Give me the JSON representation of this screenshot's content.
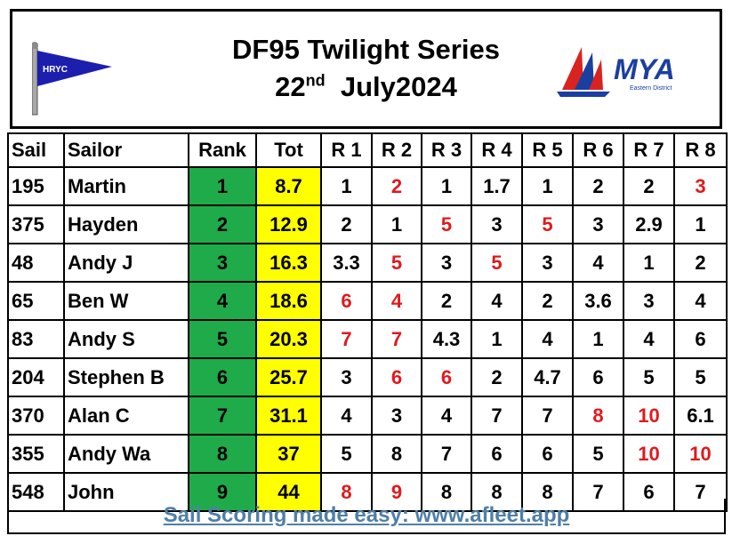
{
  "header": {
    "title_line1": "DF95 Twilight Series",
    "date_day": "22",
    "date_suffix": "nd",
    "date_rest": "July2024",
    "club_logo_text": "HRYC",
    "mya_logo_text": "MYA",
    "mya_logo_sub": "Eastern District"
  },
  "table": {
    "columns": [
      "Sail",
      "Sailor",
      "Rank",
      "Tot",
      "R 1",
      "R 2",
      "R 3",
      "R 4",
      "R 5",
      "R 6",
      "R 7",
      "R 8"
    ],
    "rows": [
      {
        "sail": "195",
        "sailor": "Martin",
        "rank": "1",
        "tot": "8.7",
        "races": [
          "1",
          "2",
          "1",
          "1.7",
          "1",
          "2",
          "2",
          "3"
        ],
        "discard": [
          false,
          true,
          false,
          false,
          false,
          false,
          false,
          true
        ]
      },
      {
        "sail": "375",
        "sailor": "Hayden",
        "rank": "2",
        "tot": "12.9",
        "races": [
          "2",
          "1",
          "5",
          "3",
          "5",
          "3",
          "2.9",
          "1"
        ],
        "discard": [
          false,
          false,
          true,
          false,
          true,
          false,
          false,
          false
        ]
      },
      {
        "sail": "48",
        "sailor": "Andy J",
        "rank": "3",
        "tot": "16.3",
        "races": [
          "3.3",
          "5",
          "3",
          "5",
          "3",
          "4",
          "1",
          "2"
        ],
        "discard": [
          false,
          true,
          false,
          true,
          false,
          false,
          false,
          false
        ]
      },
      {
        "sail": "65",
        "sailor": "Ben W",
        "rank": "4",
        "tot": "18.6",
        "races": [
          "6",
          "4",
          "2",
          "4",
          "2",
          "3.6",
          "3",
          "4"
        ],
        "discard": [
          true,
          true,
          false,
          false,
          false,
          false,
          false,
          false
        ]
      },
      {
        "sail": "83",
        "sailor": "Andy S",
        "rank": "5",
        "tot": "20.3",
        "races": [
          "7",
          "7",
          "4.3",
          "1",
          "4",
          "1",
          "4",
          "6"
        ],
        "discard": [
          true,
          true,
          false,
          false,
          false,
          false,
          false,
          false
        ]
      },
      {
        "sail": "204",
        "sailor": "Stephen B",
        "rank": "6",
        "tot": "25.7",
        "races": [
          "3",
          "6",
          "6",
          "2",
          "4.7",
          "6",
          "5",
          "5"
        ],
        "discard": [
          false,
          true,
          true,
          false,
          false,
          false,
          false,
          false
        ]
      },
      {
        "sail": "370",
        "sailor": "Alan C",
        "rank": "7",
        "tot": "31.1",
        "races": [
          "4",
          "3",
          "4",
          "7",
          "7",
          "8",
          "10",
          "6.1"
        ],
        "discard": [
          false,
          false,
          false,
          false,
          false,
          true,
          true,
          false
        ]
      },
      {
        "sail": "355",
        "sailor": "Andy Wa",
        "rank": "8",
        "tot": "37",
        "races": [
          "5",
          "8",
          "7",
          "6",
          "6",
          "5",
          "10",
          "10"
        ],
        "discard": [
          false,
          false,
          false,
          false,
          false,
          false,
          true,
          true
        ]
      },
      {
        "sail": "548",
        "sailor": "John",
        "rank": "9",
        "tot": "44",
        "races": [
          "8",
          "9",
          "8",
          "8",
          "8",
          "7",
          "6",
          "7"
        ],
        "discard": [
          true,
          true,
          false,
          false,
          false,
          false,
          false,
          false
        ]
      }
    ]
  },
  "colors": {
    "rank_bg": "#1fab4a",
    "tot_bg": "#ffff00",
    "discard_text": "#e0191d",
    "footer_link": "#4f7fa8"
  },
  "footer": {
    "link_text": "Sail Scoring made easy: www.afleet.app"
  }
}
